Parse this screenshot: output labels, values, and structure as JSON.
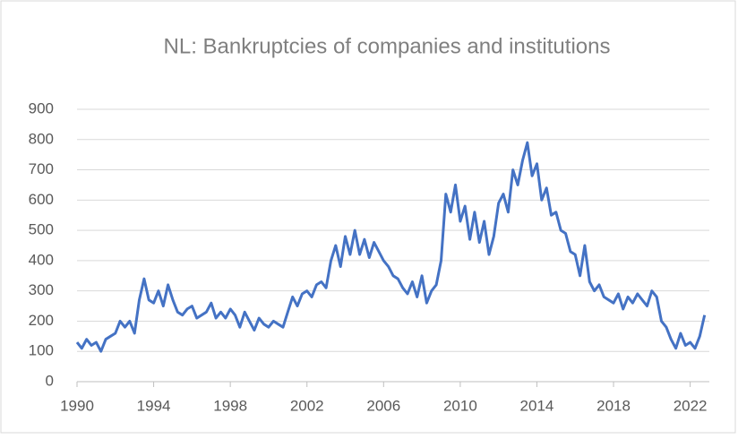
{
  "chart_data": {
    "type": "line",
    "title": "NL: Bankruptcies of companies and institutions",
    "x": [
      1990,
      1990.25,
      1990.5,
      1990.75,
      1991,
      1991.25,
      1991.5,
      1991.75,
      1992,
      1992.25,
      1992.5,
      1992.75,
      1993,
      1993.25,
      1993.5,
      1993.75,
      1994,
      1994.25,
      1994.5,
      1994.75,
      1995,
      1995.25,
      1995.5,
      1995.75,
      1996,
      1996.25,
      1996.5,
      1996.75,
      1997,
      1997.25,
      1997.5,
      1997.75,
      1998,
      1998.25,
      1998.5,
      1998.75,
      1999,
      1999.25,
      1999.5,
      1999.75,
      2000,
      2000.25,
      2000.5,
      2000.75,
      2001,
      2001.25,
      2001.5,
      2001.75,
      2002,
      2002.25,
      2002.5,
      2002.75,
      2003,
      2003.25,
      2003.5,
      2003.75,
      2004,
      2004.25,
      2004.5,
      2004.75,
      2005,
      2005.25,
      2005.5,
      2005.75,
      2006,
      2006.25,
      2006.5,
      2006.75,
      2007,
      2007.25,
      2007.5,
      2007.75,
      2008,
      2008.25,
      2008.5,
      2008.75,
      2009,
      2009.25,
      2009.5,
      2009.75,
      2010,
      2010.25,
      2010.5,
      2010.75,
      2011,
      2011.25,
      2011.5,
      2011.75,
      2012,
      2012.25,
      2012.5,
      2012.75,
      2013,
      2013.25,
      2013.5,
      2013.75,
      2014,
      2014.25,
      2014.5,
      2014.75,
      2015,
      2015.25,
      2015.5,
      2015.75,
      2016,
      2016.25,
      2016.5,
      2016.75,
      2017,
      2017.25,
      2017.5,
      2017.75,
      2018,
      2018.25,
      2018.5,
      2018.75,
      2019,
      2019.25,
      2019.5,
      2019.75,
      2020,
      2020.25,
      2020.5,
      2020.75,
      2021,
      2021.25,
      2021.5,
      2021.75,
      2022,
      2022.25,
      2022.5,
      2022.75
    ],
    "series": [
      {
        "color": "#4472c4",
        "values": [
          130,
          110,
          140,
          120,
          130,
          100,
          140,
          150,
          160,
          200,
          180,
          200,
          160,
          270,
          340,
          270,
          260,
          300,
          250,
          320,
          270,
          230,
          220,
          240,
          250,
          210,
          220,
          230,
          260,
          210,
          230,
          210,
          240,
          220,
          180,
          230,
          200,
          170,
          210,
          190,
          180,
          200,
          190,
          180,
          230,
          280,
          250,
          290,
          300,
          280,
          320,
          330,
          310,
          400,
          450,
          380,
          480,
          420,
          500,
          420,
          470,
          410,
          460,
          430,
          400,
          380,
          350,
          340,
          310,
          290,
          330,
          280,
          350,
          260,
          300,
          320,
          400,
          620,
          560,
          650,
          530,
          580,
          470,
          560,
          460,
          530,
          420,
          480,
          590,
          620,
          560,
          700,
          650,
          730,
          790,
          680,
          720,
          600,
          640,
          550,
          560,
          500,
          490,
          430,
          420,
          350,
          450,
          330,
          300,
          320,
          280,
          270,
          260,
          290,
          240,
          280,
          260,
          290,
          270,
          250,
          300,
          280,
          200,
          180,
          140,
          110,
          160,
          120,
          130,
          110,
          150,
          220
        ]
      }
    ],
    "xlim": [
      1990,
      2023
    ],
    "ylim": [
      0,
      900
    ],
    "xticks": [
      1990,
      1994,
      1998,
      2002,
      2006,
      2010,
      2014,
      2018,
      2022
    ],
    "yticks": [
      0,
      100,
      200,
      300,
      400,
      500,
      600,
      700,
      800,
      900
    ],
    "grid": true
  }
}
